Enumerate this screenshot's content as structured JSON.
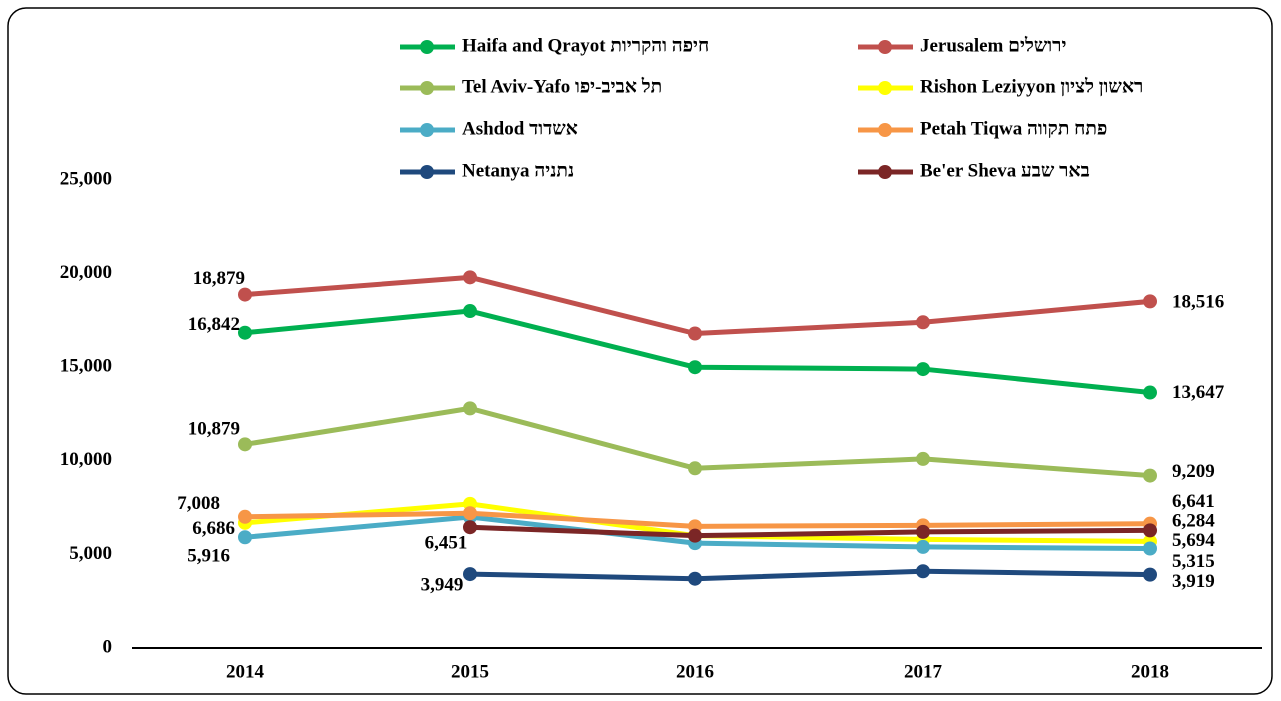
{
  "chart_data": {
    "type": "line",
    "categories": [
      "2014",
      "2015",
      "2016",
      "2017",
      "2018"
    ],
    "ylim": [
      0,
      25000
    ],
    "yticks": [
      0,
      {
        "value": 5000,
        "label": "5,000"
      },
      {
        "value": 10000,
        "label": "10,000"
      },
      {
        "value": 15000,
        "label": "15,000"
      },
      {
        "value": 20000,
        "label": "20,000"
      },
      {
        "value": 25000,
        "label": "25,000"
      }
    ],
    "grid": false,
    "series": [
      {
        "name": "Haifa and Qrayot  חיפה והקריות",
        "color": "#00b050",
        "values": [
          16842,
          18000,
          15000,
          14900,
          13647
        ],
        "value_labels": [
          "16,842",
          null,
          null,
          null,
          "13,647"
        ]
      },
      {
        "name": "Jerusalem ירושלים",
        "color": "#c0504d",
        "values": [
          18879,
          19800,
          16800,
          17400,
          18516
        ],
        "value_labels": [
          "18,879",
          null,
          null,
          null,
          "18,516"
        ]
      },
      {
        "name": "Tel Aviv-Yafo תל אביב-יפו",
        "color": "#9bbb59",
        "values": [
          10879,
          12800,
          9600,
          10100,
          9209
        ],
        "value_labels": [
          "10,879",
          null,
          null,
          null,
          "9,209"
        ]
      },
      {
        "name": "Rishon Leziyyon ראשון לציון",
        "color": "#ffff00",
        "values": [
          6686,
          7700,
          6000,
          5800,
          5694
        ],
        "value_labels": [
          "6,686",
          null,
          null,
          null,
          "5,694"
        ]
      },
      {
        "name": "Ashdod אשדוד",
        "color": "#4bacc6",
        "values": [
          5916,
          7000,
          5600,
          5400,
          5315
        ],
        "value_labels": [
          "5,916",
          null,
          null,
          null,
          "5,315"
        ]
      },
      {
        "name": "Petah Tiqwa  פתח תקווה",
        "color": "#f79646",
        "values": [
          7008,
          7200,
          6500,
          6550,
          6641
        ],
        "value_labels": [
          "7,008",
          null,
          null,
          null,
          "6,641"
        ]
      },
      {
        "name": "Netanya נתניה",
        "color": "#1f497d",
        "values": [
          null,
          3949,
          3700,
          4100,
          3919
        ],
        "value_labels": [
          null,
          "3,949",
          null,
          null,
          "3,919"
        ]
      },
      {
        "name": "Be'er Sheva באר שבע",
        "color": "#7b2626",
        "values": [
          null,
          6451,
          6000,
          6200,
          6284
        ],
        "value_labels": [
          null,
          "6,451",
          null,
          null,
          "6,284"
        ]
      }
    ]
  }
}
